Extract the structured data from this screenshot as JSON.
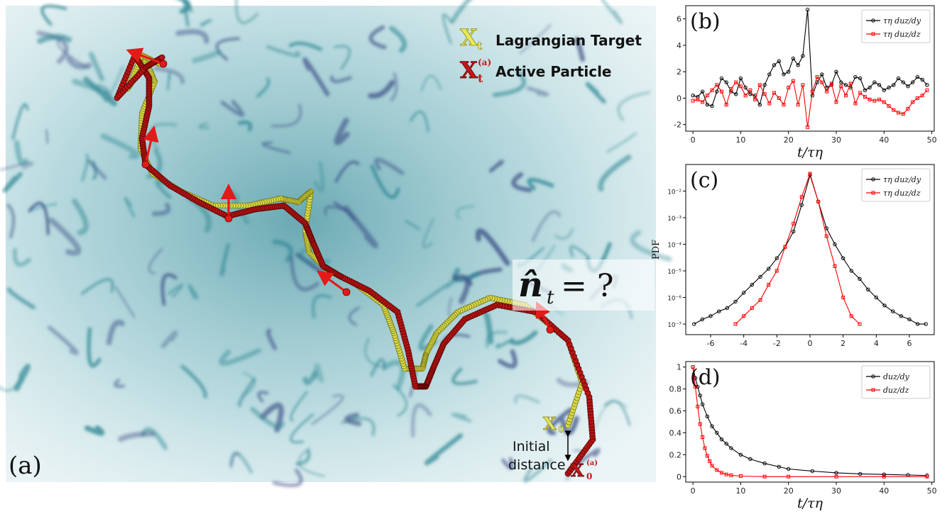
{
  "panel_a": {
    "label": "(a)",
    "legend_target_symbol": "X",
    "legend_target_sub": "t",
    "legend_target_text": "Lagrangian Target",
    "legend_active_symbol": "X",
    "legend_active_sub": "t",
    "legend_active_sup": "(a)",
    "legend_active_text": "Active Particle",
    "question": "n̂",
    "question_sub": "t",
    "question_tail": " = ?",
    "x0_symbol": "X",
    "x0_sub": "0",
    "x0a_sup": "(a)",
    "initial_distance_line1": "Initial",
    "initial_distance_line2": "distance",
    "colors": {
      "target": "#d8d84a",
      "active": "#b81414",
      "arrow": "#e31a1a",
      "background": "#4f9ea8"
    }
  },
  "chart_data": [
    {
      "id": "b",
      "panel_label": "(b)",
      "type": "line",
      "xlabel": "t/τη",
      "ylabel": "",
      "xlim": [
        -1.5,
        50.5
      ],
      "ylim": [
        -2.5,
        7
      ],
      "xticks": [
        0,
        10,
        20,
        30,
        40,
        50
      ],
      "yticks": [
        -2,
        0,
        2,
        4,
        6
      ],
      "legend_position": "top-right",
      "series": [
        {
          "name": "τη duz/dy",
          "color": "#000000",
          "marker": "circle",
          "x": [
            0,
            1,
            2,
            3,
            4,
            5,
            6,
            7,
            8,
            9,
            10,
            11,
            12,
            13,
            14,
            15,
            16,
            17,
            18,
            19,
            20,
            21,
            22,
            23,
            24,
            25,
            26,
            27,
            28,
            29,
            30,
            31,
            32,
            33,
            34,
            35,
            36,
            37,
            38,
            39,
            40,
            41,
            42,
            43,
            44,
            45,
            46,
            47,
            48,
            49
          ],
          "y": [
            0.2,
            0.1,
            0.5,
            -0.5,
            -0.6,
            0.5,
            1.5,
            1.2,
            0.5,
            0.3,
            1.5,
            0.8,
            0.3,
            0.2,
            -0.5,
            1.0,
            1.8,
            2.5,
            2.8,
            1.8,
            2.0,
            3.0,
            2.5,
            3.2,
            6.7,
            0.2,
            1.2,
            1.8,
            0.8,
            1.0,
            2.0,
            1.2,
            1.0,
            0.8,
            1.6,
            1.5,
            0.6,
            0.8,
            1.2,
            1.0,
            0.6,
            0.8,
            1.0,
            1.5,
            1.2,
            0.9,
            1.2,
            1.6,
            1.4,
            1.0
          ]
        },
        {
          "name": "τη duz/dz",
          "color": "#ff0000",
          "marker": "square",
          "x": [
            0,
            1,
            2,
            3,
            4,
            5,
            6,
            7,
            8,
            9,
            10,
            11,
            12,
            13,
            14,
            15,
            16,
            17,
            18,
            19,
            20,
            21,
            22,
            23,
            24,
            25,
            26,
            27,
            28,
            29,
            30,
            31,
            32,
            33,
            34,
            35,
            36,
            37,
            38,
            39,
            40,
            41,
            42,
            43,
            44,
            45,
            46,
            47,
            48,
            49
          ],
          "y": [
            -0.2,
            -0.1,
            -0.3,
            0.2,
            0.6,
            1.0,
            0.5,
            -0.5,
            0.7,
            1.2,
            0.9,
            0.2,
            0.6,
            -0.1,
            1.0,
            0.3,
            -0.4,
            0.4,
            0.0,
            -0.5,
            0.8,
            1.3,
            -0.5,
            1.0,
            -2.2,
            0.5,
            1.6,
            1.2,
            0.5,
            1.1,
            -0.3,
            0.9,
            0.2,
            1.1,
            -0.4,
            0.4,
            0.1,
            -0.1,
            -0.2,
            -0.1,
            -0.3,
            -0.6,
            -0.9,
            -1.1,
            -1.2,
            -0.8,
            -0.3,
            0.0,
            0.2,
            0.6
          ]
        }
      ]
    },
    {
      "id": "c",
      "panel_label": "(c)",
      "type": "line",
      "xlabel": "",
      "ylabel": "PDF",
      "yscale": "log",
      "xlim": [
        -7.5,
        7.5
      ],
      "ylim": [
        4e-08,
        0.1
      ],
      "xticks": [
        -6,
        -4,
        -2,
        0,
        2,
        4,
        6
      ],
      "yticks": [
        1e-07,
        1e-06,
        1e-05,
        0.0001,
        0.001,
        0.01
      ],
      "ytick_labels": [
        "10⁻⁷",
        "10⁻⁶",
        "10⁻⁵",
        "10⁻⁴",
        "10⁻³",
        "10⁻²"
      ],
      "legend_position": "top-right",
      "series": [
        {
          "name": "τη duz/dy",
          "color": "#000000",
          "marker": "circle",
          "x": [
            -7,
            -6.5,
            -6,
            -5.5,
            -5,
            -4.5,
            -4,
            -3.5,
            -3,
            -2.5,
            -2,
            -1.5,
            -1,
            -0.5,
            0,
            0.5,
            1,
            1.5,
            2,
            2.5,
            3,
            3.5,
            4,
            4.5,
            5,
            5.5,
            6,
            6.5,
            7
          ],
          "y": [
            1e-07,
            1.5e-07,
            2e-07,
            3e-07,
            4e-07,
            7e-07,
            1.5e-06,
            3e-06,
            6e-06,
            1.2e-05,
            3e-05,
            8e-05,
            0.0003,
            0.003,
            0.04,
            0.004,
            0.0004,
            0.0001,
            3e-05,
            1e-05,
            5e-06,
            2e-06,
            1e-06,
            5e-07,
            3e-07,
            2e-07,
            1.5e-07,
            1e-07,
            1e-07
          ]
        },
        {
          "name": "τη duz/dz",
          "color": "#ff0000",
          "marker": "square",
          "x": [
            -4.5,
            -4,
            -3.5,
            -3,
            -2.5,
            -2,
            -1.5,
            -1,
            -0.5,
            0,
            0.5,
            1,
            1.5,
            2,
            2.5,
            3
          ],
          "y": [
            1e-07,
            2e-07,
            4e-07,
            8e-07,
            3e-06,
            1e-05,
            8e-05,
            0.0006,
            0.006,
            0.045,
            0.004,
            0.0002,
            1.5e-05,
            1e-06,
            2e-07,
            1e-07
          ]
        }
      ]
    },
    {
      "id": "d",
      "panel_label": "(d)",
      "type": "line",
      "xlabel": "t/τη",
      "ylabel": "",
      "xlim": [
        -1.5,
        50.5
      ],
      "ylim": [
        -0.05,
        1.05
      ],
      "xticks": [
        0,
        10,
        20,
        30,
        40,
        50
      ],
      "yticks": [
        0.0,
        0.2,
        0.4,
        0.6,
        0.8,
        1.0
      ],
      "legend_position": "top-right",
      "series": [
        {
          "name": "duz/dy",
          "color": "#000000",
          "marker": "circle",
          "x": [
            0,
            0.5,
            1,
            1.5,
            2,
            3,
            4,
            5,
            6,
            7,
            8,
            10,
            12,
            15,
            18,
            20,
            25,
            30,
            35,
            40,
            45,
            49
          ],
          "y": [
            1.0,
            0.9,
            0.82,
            0.74,
            0.66,
            0.55,
            0.46,
            0.4,
            0.34,
            0.3,
            0.26,
            0.2,
            0.16,
            0.12,
            0.09,
            0.07,
            0.05,
            0.035,
            0.025,
            0.02,
            0.015,
            0.01
          ]
        },
        {
          "name": "duz/dz",
          "color": "#ff0000",
          "marker": "square",
          "x": [
            0,
            0.5,
            1,
            1.5,
            2,
            2.5,
            3,
            3.5,
            4,
            5,
            6,
            7,
            8,
            10,
            15,
            20,
            30,
            40,
            49
          ],
          "y": [
            1.0,
            0.82,
            0.64,
            0.48,
            0.36,
            0.26,
            0.19,
            0.14,
            0.1,
            0.06,
            0.035,
            0.02,
            0.012,
            0.005,
            0.0,
            0.0,
            0.0,
            0.0,
            0.0
          ]
        }
      ]
    }
  ]
}
